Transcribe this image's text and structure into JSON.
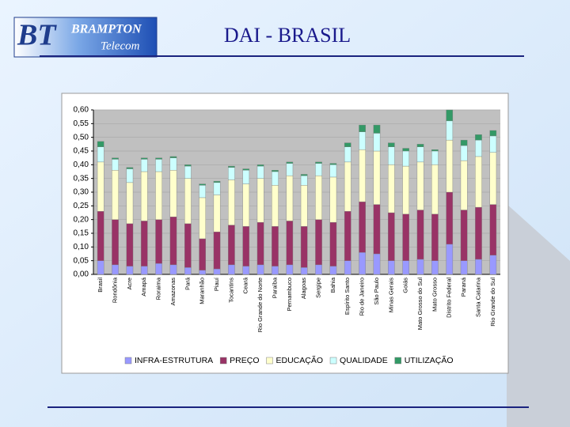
{
  "header": {
    "logo_mark": "BT",
    "logo_line1": "BRAMPTON",
    "logo_line2": "Telecom"
  },
  "chart_data": {
    "type": "stacked-bar",
    "title": "DAI  - BRASIL",
    "categories": [
      "Brasil",
      "Rondônia",
      "Acre",
      "Amapá",
      "Roraima",
      "Amazonas",
      "Pará",
      "Maranhão",
      "Piauí",
      "Tocantins",
      "Ceará",
      "Rio Grande do Norte",
      "Paraíba",
      "Pernambuco",
      "Alagoas",
      "Sergipe",
      "Bahia",
      "Espírito Santo",
      "Rio de Janeiro",
      "São Paulo",
      "Minas Gerais",
      "Goiás",
      "Mato Grosso do Sul",
      "Mato Grosso",
      "Distrito Federal",
      "Paraná",
      "Santa Catarina",
      "Rio Grande do Sul"
    ],
    "series": [
      {
        "name": "INFRA-ESTRUTURA",
        "color": "#9999ff",
        "values": [
          0.05,
          0.035,
          0.03,
          0.03,
          0.04,
          0.035,
          0.025,
          0.015,
          0.02,
          0.035,
          0.03,
          0.035,
          0.03,
          0.035,
          0.025,
          0.035,
          0.03,
          0.05,
          0.08,
          0.075,
          0.05,
          0.05,
          0.055,
          0.05,
          0.11,
          0.05,
          0.055,
          0.07
        ]
      },
      {
        "name": "PREÇO",
        "color": "#993366",
        "values": [
          0.18,
          0.165,
          0.155,
          0.165,
          0.16,
          0.175,
          0.16,
          0.115,
          0.135,
          0.145,
          0.145,
          0.155,
          0.145,
          0.16,
          0.15,
          0.165,
          0.16,
          0.18,
          0.185,
          0.18,
          0.175,
          0.17,
          0.18,
          0.17,
          0.19,
          0.185,
          0.19,
          0.185
        ]
      },
      {
        "name": "EDUCAÇÃO",
        "color": "#ffffcc",
        "values": [
          0.18,
          0.18,
          0.15,
          0.18,
          0.175,
          0.17,
          0.165,
          0.15,
          0.135,
          0.165,
          0.155,
          0.16,
          0.15,
          0.165,
          0.15,
          0.16,
          0.165,
          0.18,
          0.19,
          0.195,
          0.175,
          0.175,
          0.175,
          0.18,
          0.19,
          0.18,
          0.185,
          0.19
        ]
      },
      {
        "name": "QUALIDADE",
        "color": "#ccffff",
        "values": [
          0.055,
          0.04,
          0.05,
          0.045,
          0.045,
          0.045,
          0.045,
          0.045,
          0.045,
          0.045,
          0.05,
          0.045,
          0.05,
          0.045,
          0.035,
          0.045,
          0.045,
          0.055,
          0.065,
          0.065,
          0.065,
          0.055,
          0.055,
          0.05,
          0.07,
          0.055,
          0.06,
          0.06
        ]
      },
      {
        "name": "UTILIZAÇÃO",
        "color": "#339966",
        "values": [
          0.02,
          0.005,
          0.005,
          0.005,
          0.005,
          0.005,
          0.005,
          0.005,
          0.005,
          0.005,
          0.005,
          0.005,
          0.005,
          0.005,
          0.005,
          0.005,
          0.005,
          0.015,
          0.025,
          0.03,
          0.015,
          0.01,
          0.01,
          0.005,
          0.04,
          0.02,
          0.02,
          0.02
        ]
      }
    ],
    "ylim": [
      0,
      0.6
    ],
    "yticks": [
      {
        "value": 0,
        "label": "0,00"
      },
      {
        "value": 0.05,
        "label": "0,05"
      },
      {
        "value": 0.1,
        "label": "0,10"
      },
      {
        "value": 0.15,
        "label": "0,15"
      },
      {
        "value": 0.2,
        "label": "0,20"
      },
      {
        "value": 0.25,
        "label": "0,25"
      },
      {
        "value": 0.3,
        "label": "0,30"
      },
      {
        "value": 0.35,
        "label": "0,35"
      },
      {
        "value": 0.4,
        "label": "0,40"
      },
      {
        "value": 0.45,
        "label": "0,45"
      },
      {
        "value": 0.5,
        "label": "0,50"
      },
      {
        "value": 0.55,
        "label": "0,55"
      },
      {
        "value": 0.6,
        "label": "0,60"
      }
    ],
    "grid": true,
    "legend": "bottom"
  }
}
